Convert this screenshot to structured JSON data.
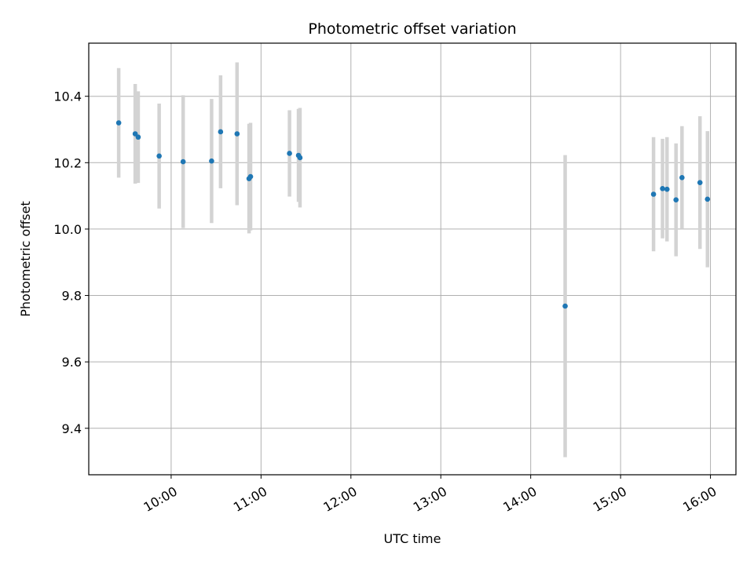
{
  "chart_data": {
    "type": "scatter",
    "title": "Photometric offset variation",
    "xlabel": "UTC time",
    "ylabel": "Photometric offset",
    "x_unit": "hours UTC",
    "xlim": [
      "09:05",
      "16:17"
    ],
    "ylim": [
      9.26,
      10.56
    ],
    "x_ticks": [
      "10:00",
      "11:00",
      "12:00",
      "13:00",
      "14:00",
      "15:00",
      "16:00"
    ],
    "y_ticks": [
      9.4,
      9.6,
      9.8,
      10.0,
      10.2,
      10.4
    ],
    "y_tick_labels": [
      "9.4",
      "9.6",
      "9.8",
      "10.0",
      "10.2",
      "10.4"
    ],
    "grid": true,
    "x_tick_rotation": 30,
    "point_color": "#1f77b4",
    "errorbar_color": "#d3d3d3",
    "points": [
      {
        "x": "09:25",
        "y": 10.32,
        "err": 0.165
      },
      {
        "x": "09:36",
        "y": 10.287,
        "err": 0.15
      },
      {
        "x": "09:38",
        "y": 10.277,
        "err": 0.138
      },
      {
        "x": "09:52",
        "y": 10.22,
        "err": 0.158
      },
      {
        "x": "10:08",
        "y": 10.203,
        "err": 0.2
      },
      {
        "x": "10:27",
        "y": 10.205,
        "err": 0.187
      },
      {
        "x": "10:33",
        "y": 10.293,
        "err": 0.17
      },
      {
        "x": "10:44",
        "y": 10.287,
        "err": 0.215
      },
      {
        "x": "10:52",
        "y": 10.152,
        "err": 0.165
      },
      {
        "x": "10:53",
        "y": 10.158,
        "err": 0.162
      },
      {
        "x": "11:19",
        "y": 10.228,
        "err": 0.13
      },
      {
        "x": "11:25",
        "y": 10.222,
        "err": 0.14
      },
      {
        "x": "11:26",
        "y": 10.215,
        "err": 0.15
      },
      {
        "x": "14:23",
        "y": 9.768,
        "err": 0.455
      },
      {
        "x": "15:22",
        "y": 10.105,
        "err": 0.172
      },
      {
        "x": "15:28",
        "y": 10.122,
        "err": 0.15
      },
      {
        "x": "15:31",
        "y": 10.12,
        "err": 0.157
      },
      {
        "x": "15:37",
        "y": 10.088,
        "err": 0.17
      },
      {
        "x": "15:41",
        "y": 10.155,
        "err": 0.155
      },
      {
        "x": "15:53",
        "y": 10.14,
        "err": 0.2
      },
      {
        "x": "15:58",
        "y": 10.09,
        "err": 0.205
      }
    ]
  }
}
